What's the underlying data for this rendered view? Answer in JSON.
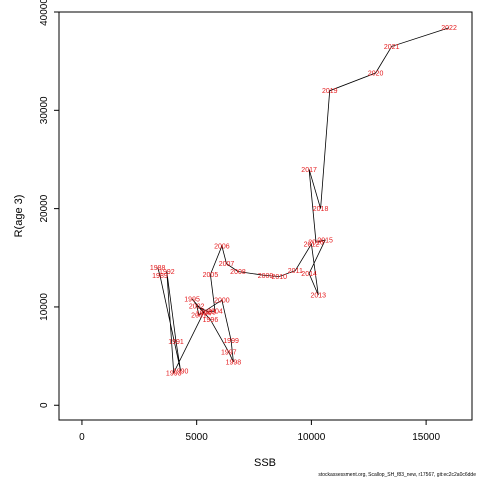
{
  "chart_data": {
    "type": "line",
    "xlabel": "SSB",
    "ylabel": "R(age 3)",
    "xlim": [
      -1000,
      17000
    ],
    "ylim": [
      -1500,
      40000
    ],
    "x_ticks": [
      0,
      5000,
      10000,
      15000
    ],
    "y_ticks": [
      0,
      10000,
      20000,
      30000,
      40000
    ],
    "x_tick_labels": [
      "0",
      "5000",
      "10000",
      "15000"
    ],
    "y_tick_labels": [
      "0",
      "10000",
      "20000",
      "30000",
      "40000"
    ],
    "grid": false,
    "line_color": "#000000",
    "label_color": "#e41a1c",
    "points": [
      {
        "year": "1988",
        "x": 3300,
        "y": 14000
      },
      {
        "year": "1989",
        "x": 3400,
        "y": 13200
      },
      {
        "year": "1990",
        "x": 4300,
        "y": 3500
      },
      {
        "year": "1991",
        "x": 4100,
        "y": 6500
      },
      {
        "year": "1992",
        "x": 3700,
        "y": 13600
      },
      {
        "year": "1993",
        "x": 4000,
        "y": 3300
      },
      {
        "year": "1994",
        "x": 5300,
        "y": 9400
      },
      {
        "year": "1995",
        "x": 4800,
        "y": 10800
      },
      {
        "year": "1996",
        "x": 5600,
        "y": 8700
      },
      {
        "year": "1997",
        "x": 6400,
        "y": 5400
      },
      {
        "year": "1998",
        "x": 6600,
        "y": 4400
      },
      {
        "year": "1999",
        "x": 6500,
        "y": 6600
      },
      {
        "year": "2000",
        "x": 6100,
        "y": 10700
      },
      {
        "year": "2001",
        "x": 5100,
        "y": 9200
      },
      {
        "year": "2002",
        "x": 5000,
        "y": 10100
      },
      {
        "year": "2003",
        "x": 5500,
        "y": 9500
      },
      {
        "year": "2004",
        "x": 5800,
        "y": 9600
      },
      {
        "year": "2005",
        "x": 5600,
        "y": 13300
      },
      {
        "year": "2006",
        "x": 6100,
        "y": 16200
      },
      {
        "year": "2007",
        "x": 6300,
        "y": 14400
      },
      {
        "year": "2008",
        "x": 6800,
        "y": 13600
      },
      {
        "year": "2009",
        "x": 8000,
        "y": 13200
      },
      {
        "year": "2010",
        "x": 8600,
        "y": 13100
      },
      {
        "year": "2011",
        "x": 9300,
        "y": 13700
      },
      {
        "year": "2012",
        "x": 10000,
        "y": 16400
      },
      {
        "year": "2013",
        "x": 10300,
        "y": 11200
      },
      {
        "year": "2014",
        "x": 9900,
        "y": 13400
      },
      {
        "year": "2015",
        "x": 10600,
        "y": 16800
      },
      {
        "year": "2016",
        "x": 10200,
        "y": 16600
      },
      {
        "year": "2017",
        "x": 9900,
        "y": 24000
      },
      {
        "year": "2018",
        "x": 10400,
        "y": 20000
      },
      {
        "year": "2019",
        "x": 10800,
        "y": 32000
      },
      {
        "year": "2020",
        "x": 12800,
        "y": 33800
      },
      {
        "year": "2021",
        "x": 13500,
        "y": 36500
      },
      {
        "year": "2022",
        "x": 16000,
        "y": 38400
      }
    ]
  },
  "footer": {
    "source": "stockassessment.org, Scallop_SH_f83_new, r17567, git:ec2c2a0c6dde"
  }
}
